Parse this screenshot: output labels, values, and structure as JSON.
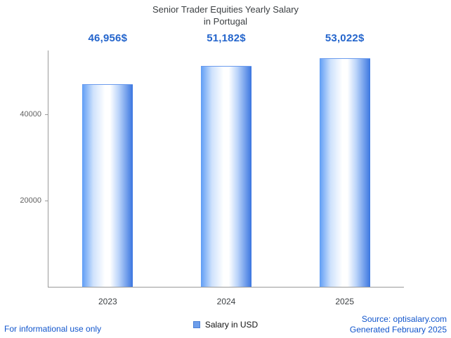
{
  "title": {
    "line1": "Senior Trader Equities Yearly Salary",
    "line2": "in Portugal"
  },
  "chart_data": {
    "type": "bar",
    "title": "Senior Trader Equities Yearly Salary in Portugal",
    "categories": [
      "2023",
      "2024",
      "2025"
    ],
    "values": [
      46956,
      51182,
      53022
    ],
    "value_labels": [
      "46,956$",
      "51,182$",
      "53,022$"
    ],
    "series_name": "Salary in USD",
    "xlabel": "",
    "ylabel": "",
    "ylim": [
      0,
      55000
    ],
    "y_ticks": [
      {
        "value": 20000,
        "label": "20000"
      },
      {
        "value": 40000,
        "label": "40000"
      }
    ],
    "grid": false,
    "legend_position": "bottom",
    "bar_gradient": [
      "#5f9df5",
      "#ffffff",
      "#3b76e0"
    ],
    "value_label_color": "#2465cc",
    "axis_color": "#9a9a9a"
  },
  "legend": {
    "label": "Salary in USD",
    "swatch_color": "#6d9eeb"
  },
  "footer": {
    "left": "For informational use only",
    "source": "Source: optisalary.com",
    "generated": "Generated February 2025",
    "link_color": "#1155cc"
  }
}
